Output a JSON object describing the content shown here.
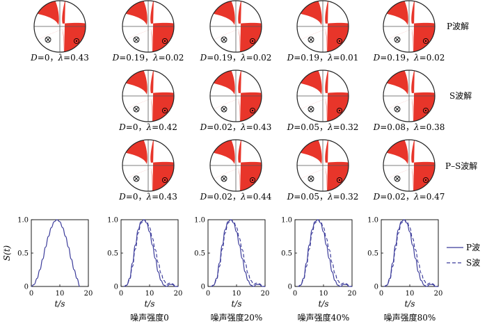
{
  "colors": {
    "compression": "#e8352a",
    "dilatation": "#ffffff",
    "outline": "#222222",
    "nodal_grid": "#555555",
    "stf_line": "#3b3b9a"
  },
  "row_labels": [
    "P波解",
    "S波解",
    "P–S波解"
  ],
  "beachball_rows": [
    {
      "label": "P波解",
      "balls": [
        {
          "D": "0",
          "lambda": "0.43"
        },
        {
          "D": "0.19",
          "lambda": "0.02"
        },
        {
          "D": "0.19",
          "lambda": "0.02"
        },
        {
          "D": "0.19",
          "lambda": "0.01"
        },
        {
          "D": "0.19",
          "lambda": "0.02"
        }
      ]
    },
    {
      "label": "S波解",
      "balls": [
        {
          "D": "0",
          "lambda": "0.42"
        },
        {
          "D": "0.02",
          "lambda": "0.43"
        },
        {
          "D": "0.05",
          "lambda": "0.32"
        },
        {
          "D": "0.08",
          "lambda": "0.38"
        }
      ]
    },
    {
      "label": "P–S波解",
      "balls": [
        {
          "D": "0",
          "lambda": "0.43"
        },
        {
          "D": "0.02",
          "lambda": "0.44"
        },
        {
          "D": "0.05",
          "lambda": "0.32"
        },
        {
          "D": "0.02",
          "lambda": "0.47"
        }
      ]
    }
  ],
  "ball_label_parts": {
    "D": "D",
    "eq": "=",
    "sep": "，",
    "lambda": "λ"
  },
  "chart_data": {
    "type": "line",
    "ylabel": "S(t)",
    "xlabel": "t/s",
    "xlim": [
      0,
      20
    ],
    "ylim": [
      0,
      1.0
    ],
    "xticks": [
      "0",
      "10",
      "20"
    ],
    "yticks": [
      "0",
      "0.5",
      "1.0"
    ],
    "legend": {
      "position": "right",
      "entries": [
        {
          "name": "P波",
          "style": "solid"
        },
        {
          "name": "S波",
          "style": "dashed"
        }
      ]
    },
    "panels": [
      {
        "caption": "",
        "series": [
          {
            "name": "P波",
            "x": [
              0,
              1,
              2,
              3,
              4,
              5,
              6,
              7,
              8,
              9,
              10,
              11,
              12,
              13,
              14,
              15,
              16,
              17
            ],
            "y": [
              0,
              0.03,
              0.12,
              0.25,
              0.41,
              0.59,
              0.75,
              0.88,
              0.97,
              1.0,
              0.97,
              0.88,
              0.75,
              0.59,
              0.41,
              0.25,
              0.12,
              0
            ]
          }
        ]
      },
      {
        "caption": "噪声强度0",
        "series": [
          {
            "name": "P波",
            "x": [
              1,
              2,
              3,
              4,
              5,
              6,
              7,
              8,
              9,
              10,
              11,
              12,
              13,
              14,
              15,
              16,
              17,
              18,
              19,
              20
            ],
            "y": [
              0,
              0.02,
              0.12,
              0.35,
              0.62,
              0.85,
              0.97,
              1.0,
              0.95,
              0.82,
              0.62,
              0.42,
              0.22,
              0.09,
              0.02,
              0,
              0.03,
              0.03,
              0,
              0
            ]
          },
          {
            "name": "S波",
            "x": [
              1,
              2,
              3,
              4,
              5,
              6,
              7,
              8,
              9,
              10,
              11,
              12,
              13,
              14,
              15,
              16,
              17,
              18,
              19,
              20
            ],
            "y": [
              0,
              0.02,
              0.1,
              0.3,
              0.56,
              0.8,
              0.95,
              1.0,
              0.97,
              0.88,
              0.72,
              0.55,
              0.36,
              0.2,
              0.09,
              0.03,
              0.05,
              0.04,
              0.01,
              0
            ]
          }
        ]
      },
      {
        "caption": "噪声强度20%",
        "series": [
          {
            "name": "P波",
            "x": [
              1,
              2,
              3,
              4,
              5,
              6,
              7,
              8,
              9,
              10,
              11,
              12,
              13,
              14,
              15,
              16,
              17,
              18,
              19,
              20
            ],
            "y": [
              0,
              0.02,
              0.12,
              0.35,
              0.62,
              0.85,
              0.97,
              1.0,
              0.95,
              0.82,
              0.62,
              0.42,
              0.22,
              0.09,
              0.02,
              0,
              0.03,
              0.03,
              0,
              0
            ]
          },
          {
            "name": "S波",
            "x": [
              1,
              2,
              3,
              4,
              5,
              6,
              7,
              8,
              9,
              10,
              11,
              12,
              13,
              14,
              15,
              16,
              17,
              18,
              19,
              20
            ],
            "y": [
              0,
              0.02,
              0.1,
              0.3,
              0.56,
              0.8,
              0.95,
              1.0,
              0.97,
              0.88,
              0.72,
              0.55,
              0.36,
              0.2,
              0.09,
              0.03,
              0.05,
              0.04,
              0.01,
              0
            ]
          }
        ]
      },
      {
        "caption": "噪声强度40%",
        "series": [
          {
            "name": "P波",
            "x": [
              1,
              2,
              3,
              4,
              5,
              6,
              7,
              8,
              9,
              10,
              11,
              12,
              13,
              14,
              15,
              16,
              17,
              18,
              19,
              20
            ],
            "y": [
              0,
              0.02,
              0.12,
              0.35,
              0.62,
              0.85,
              0.97,
              1.0,
              0.95,
              0.82,
              0.62,
              0.42,
              0.22,
              0.09,
              0.02,
              0,
              0.03,
              0.03,
              0,
              0
            ]
          },
          {
            "name": "S波",
            "x": [
              1,
              2,
              3,
              4,
              5,
              6,
              7,
              8,
              9,
              10,
              11,
              12,
              13,
              14,
              15,
              16,
              17,
              18,
              19,
              20
            ],
            "y": [
              0,
              0.02,
              0.1,
              0.3,
              0.56,
              0.8,
              0.95,
              1.0,
              0.97,
              0.88,
              0.72,
              0.55,
              0.36,
              0.2,
              0.09,
              0.03,
              0.05,
              0.04,
              0.01,
              0
            ]
          }
        ]
      },
      {
        "caption": "噪声强度80%",
        "series": [
          {
            "name": "P波",
            "x": [
              1,
              2,
              3,
              4,
              5,
              6,
              7,
              8,
              9,
              10,
              11,
              12,
              13,
              14,
              15,
              16,
              17,
              18,
              19,
              20
            ],
            "y": [
              0,
              0.02,
              0.12,
              0.35,
              0.62,
              0.85,
              0.97,
              1.0,
              0.95,
              0.82,
              0.62,
              0.42,
              0.22,
              0.09,
              0.02,
              0,
              0.03,
              0.03,
              0,
              0
            ]
          },
          {
            "name": "S波",
            "x": [
              1,
              2,
              3,
              4,
              5,
              6,
              7,
              8,
              9,
              10,
              11,
              12,
              13,
              14,
              15,
              16,
              17,
              18,
              19,
              20
            ],
            "y": [
              0,
              0.02,
              0.1,
              0.3,
              0.56,
              0.8,
              0.95,
              1.0,
              0.97,
              0.88,
              0.72,
              0.55,
              0.36,
              0.2,
              0.09,
              0.03,
              0.05,
              0.04,
              0.01,
              0
            ]
          }
        ]
      }
    ]
  }
}
